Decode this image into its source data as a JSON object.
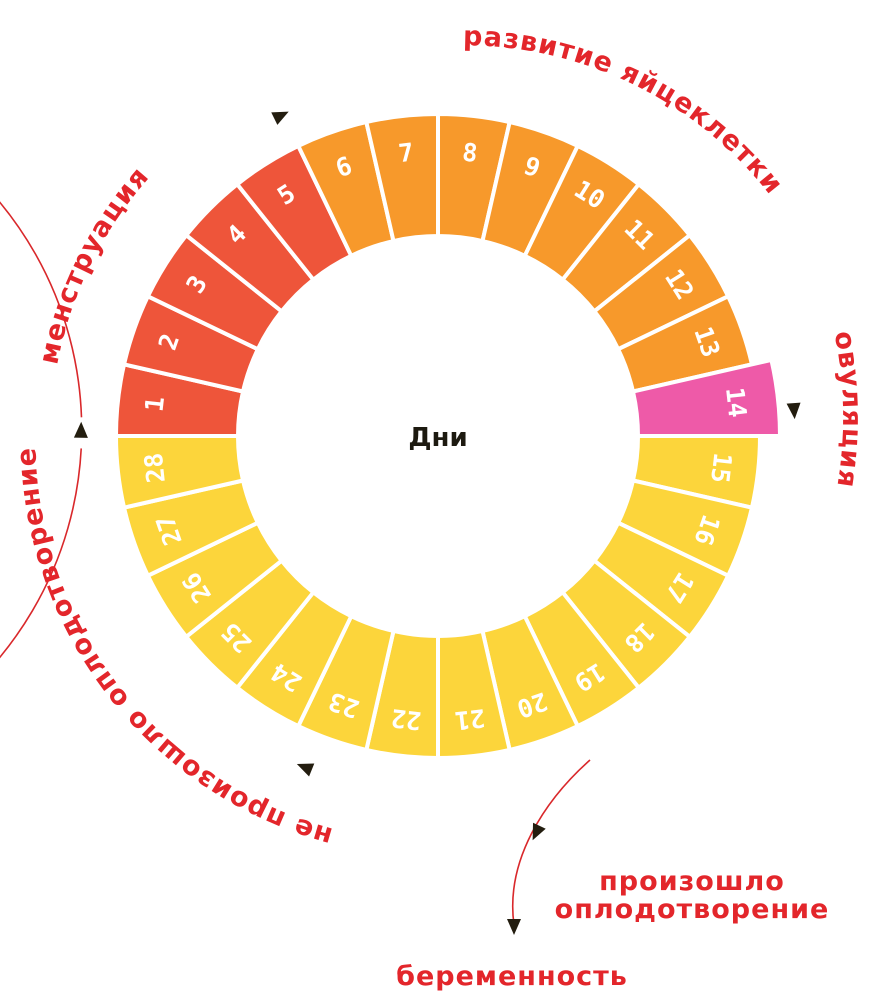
{
  "center_label": "Дни",
  "days": [
    1,
    2,
    3,
    4,
    5,
    6,
    7,
    8,
    9,
    10,
    11,
    12,
    13,
    14,
    15,
    16,
    17,
    18,
    19,
    20,
    21,
    22,
    23,
    24,
    25,
    26,
    27,
    28
  ],
  "phases": [
    {
      "name": "menstruation",
      "label": "менструация",
      "days": [
        1,
        5
      ],
      "color": "#EE553A"
    },
    {
      "name": "follicular",
      "label": "развитие яйцеклетки",
      "days": [
        6,
        13
      ],
      "color": "#F7992B"
    },
    {
      "name": "ovulation",
      "label": "овуляция",
      "days": [
        14,
        14
      ],
      "color": "#EE5AA8"
    },
    {
      "name": "luteal",
      "label": "не произошло оплодотворение",
      "days": [
        15,
        28
      ],
      "color": "#FCD53B"
    }
  ],
  "branch": {
    "label_line1": "произошло",
    "label_line2": "оплодотворение",
    "result": "беременность"
  },
  "colors": {
    "label": "#E3262B",
    "arrow_line": "#D9282B",
    "arrowhead": "#231d0f"
  }
}
